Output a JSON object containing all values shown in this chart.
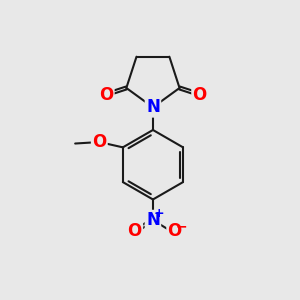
{
  "background_color": "#e8e8e8",
  "line_color": "#1a1a1a",
  "bond_width": 1.5,
  "atom_colors": {
    "O": "#ff0000",
    "N": "#0000ff",
    "C": "#1a1a1a"
  },
  "fig_size": [
    3.0,
    3.0
  ],
  "dpi": 100,
  "xlim": [
    0,
    10
  ],
  "ylim": [
    0,
    10
  ]
}
